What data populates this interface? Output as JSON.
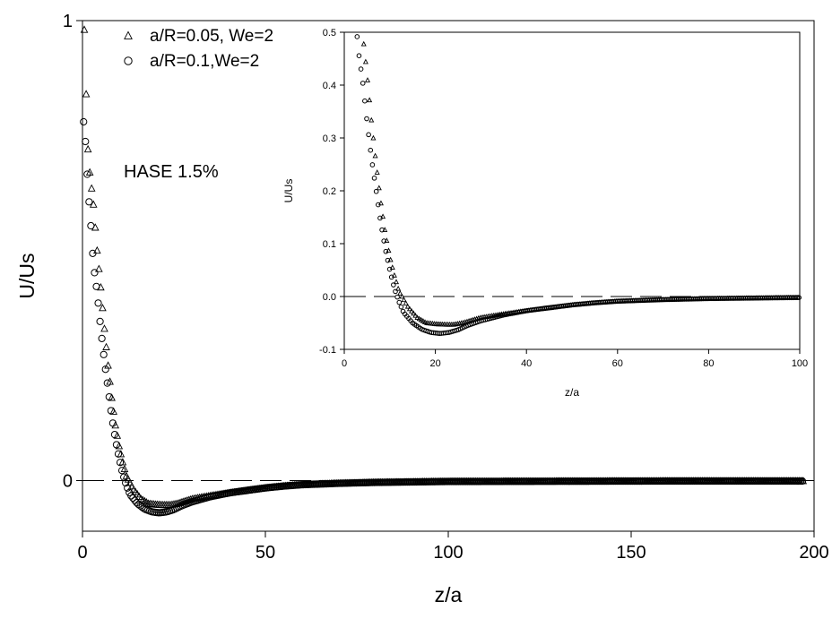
{
  "chart_data": [
    {
      "type": "scatter",
      "xlabel": "z/a",
      "ylabel": "U/Us",
      "xlim": [
        0,
        200
      ],
      "ylim": [
        -0.11,
        1
      ],
      "x_ticks": [
        0,
        50,
        100,
        150,
        200
      ],
      "y_ticks": [
        0,
        1
      ],
      "reference_line": {
        "y": 0,
        "style": "dashed"
      },
      "annotation": "HASE 1.5%",
      "legend_position": "top-left",
      "series": [
        {
          "name": "a/R=0.05, We=2",
          "marker": "triangle",
          "keypoints": [
            [
              0.5,
              0.98
            ],
            [
              1,
              0.84
            ],
            [
              1.5,
              0.72
            ],
            [
              2,
              0.67
            ],
            [
              3,
              0.6
            ],
            [
              4,
              0.5
            ],
            [
              5,
              0.42
            ],
            [
              6,
              0.33
            ],
            [
              7,
              0.25
            ],
            [
              8,
              0.18
            ],
            [
              9,
              0.12
            ],
            [
              10,
              0.075
            ],
            [
              11,
              0.04
            ],
            [
              12,
              0.01
            ],
            [
              14,
              -0.02
            ],
            [
              16,
              -0.04
            ],
            [
              18,
              -0.05
            ],
            [
              20,
              -0.052
            ],
            [
              22,
              -0.053
            ],
            [
              24,
              -0.053
            ],
            [
              26,
              -0.05
            ],
            [
              28,
              -0.045
            ],
            [
              30,
              -0.04
            ],
            [
              35,
              -0.033
            ],
            [
              40,
              -0.027
            ],
            [
              45,
              -0.022
            ],
            [
              50,
              -0.016
            ],
            [
              55,
              -0.012
            ],
            [
              60,
              -0.009
            ],
            [
              70,
              -0.006
            ],
            [
              80,
              -0.004
            ],
            [
              90,
              -0.003
            ],
            [
              100,
              -0.002
            ],
            [
              130,
              -0.0015
            ],
            [
              160,
              -0.001
            ],
            [
              197,
              -0.001
            ]
          ]
        },
        {
          "name": "a/R=0.1,We=2",
          "marker": "circle",
          "keypoints": [
            [
              0.3,
              0.78
            ],
            [
              1,
              0.72
            ],
            [
              1.5,
              0.63
            ],
            [
              2,
              0.59
            ],
            [
              2.5,
              0.53
            ],
            [
              3,
              0.47
            ],
            [
              4,
              0.41
            ],
            [
              5,
              0.33
            ],
            [
              6,
              0.26
            ],
            [
              7,
              0.2
            ],
            [
              8,
              0.14
            ],
            [
              9,
              0.09
            ],
            [
              10,
              0.05
            ],
            [
              11,
              0.015
            ],
            [
              12,
              -0.01
            ],
            [
              13,
              -0.03
            ],
            [
              15,
              -0.05
            ],
            [
              17,
              -0.062
            ],
            [
              19,
              -0.068
            ],
            [
              21,
              -0.07
            ],
            [
              23,
              -0.068
            ],
            [
              25,
              -0.063
            ],
            [
              27,
              -0.055
            ],
            [
              30,
              -0.046
            ],
            [
              35,
              -0.035
            ],
            [
              40,
              -0.027
            ],
            [
              45,
              -0.021
            ],
            [
              50,
              -0.016
            ],
            [
              55,
              -0.012
            ],
            [
              60,
              -0.009
            ],
            [
              70,
              -0.006
            ],
            [
              80,
              -0.004
            ],
            [
              90,
              -0.003
            ],
            [
              100,
              -0.002
            ],
            [
              130,
              -0.0015
            ],
            [
              160,
              -0.001
            ],
            [
              197,
              -0.001
            ]
          ]
        }
      ]
    },
    {
      "type": "scatter",
      "role": "inset",
      "xlabel": "z/a",
      "ylabel": "U/Us",
      "xlim": [
        0,
        100
      ],
      "ylim": [
        -0.1,
        0.5
      ],
      "x_ticks": [
        0,
        20,
        40,
        60,
        80,
        100
      ],
      "y_ticks": [
        -0.1,
        0.0,
        0.1,
        0.2,
        0.3,
        0.4,
        0.5
      ],
      "reference_line": {
        "y": 0,
        "style": "dashed"
      },
      "series_ref": [
        "a/R=0.05, We=2",
        "a/R=0.1,We=2"
      ]
    }
  ]
}
